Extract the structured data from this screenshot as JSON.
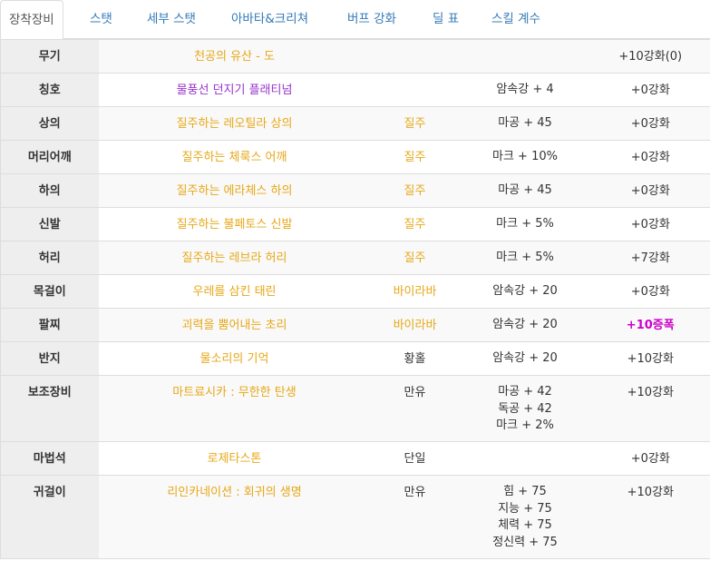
{
  "tabs": [
    {
      "label": "장착장비",
      "active": true
    },
    {
      "label": "스탯"
    },
    {
      "label": "세부 스탯"
    },
    {
      "label": "아바타&크리쳐"
    },
    {
      "label": "버프 강화"
    },
    {
      "label": "딜 표"
    },
    {
      "label": "스킬 계수"
    }
  ],
  "colors": {
    "item_gold": "#e6a817",
    "item_purple": "#9932cc",
    "enhance_magenta": "#cc00cc",
    "tab_link": "#337ab7"
  },
  "rows": [
    {
      "slot": "무기",
      "name": "천공의 유산 - 도",
      "set": "",
      "options": [],
      "enhance": "+10강화(0)"
    },
    {
      "slot": "칭호",
      "name": "물풍선 던지기 플래티넘",
      "name_color": "purple",
      "set": "",
      "options": [
        "암속강 + 4"
      ],
      "enhance": "+0강화"
    },
    {
      "slot": "상의",
      "name": "질주하는 레오틸라 상의",
      "set": "질주",
      "options": [
        "마공 + 45"
      ],
      "enhance": "+0강화"
    },
    {
      "slot": "머리어깨",
      "name": "질주하는 체룩스 어깨",
      "set": "질주",
      "options": [
        "마크 + 10%"
      ],
      "enhance": "+0강화"
    },
    {
      "slot": "하의",
      "name": "질주하는 에라체스 하의",
      "set": "질주",
      "options": [
        "마공 + 45"
      ],
      "enhance": "+0강화"
    },
    {
      "slot": "신발",
      "name": "질주하는 불페토스 신발",
      "set": "질주",
      "options": [
        "마크 + 5%"
      ],
      "enhance": "+0강화"
    },
    {
      "slot": "허리",
      "name": "질주하는 레브라 허리",
      "set": "질주",
      "options": [
        "마크 + 5%"
      ],
      "enhance": "+7강화"
    },
    {
      "slot": "목걸이",
      "name": "우레를 삼킨 태린",
      "set": "바이라바",
      "options": [
        "암속강 + 20"
      ],
      "enhance": "+0강화"
    },
    {
      "slot": "팔찌",
      "name": "괴력을 뿜어내는 초리",
      "set": "바이라바",
      "options": [
        "암속강 + 20"
      ],
      "enhance": "+10증폭",
      "enhance_color": "magenta"
    },
    {
      "slot": "반지",
      "name": "물소리의 기억",
      "set": "황홀",
      "set_color": "dark",
      "options": [
        "암속강 + 20"
      ],
      "enhance": "+10강화"
    },
    {
      "slot": "보조장비",
      "name": "마트료시카 : 무한한 탄생",
      "set": "만유",
      "set_color": "dark",
      "options": [
        "마공 + 42",
        "독공 + 42",
        "마크 + 2%"
      ],
      "enhance": "+10강화"
    },
    {
      "slot": "마법석",
      "name": "로제타스톤",
      "set": "단일",
      "set_color": "dark",
      "options": [],
      "enhance": "+0강화"
    },
    {
      "slot": "귀걸이",
      "name": "리인카네이션 : 회귀의 생명",
      "set": "만유",
      "set_color": "dark",
      "options": [
        "힘 + 75",
        "지능 + 75",
        "체력 + 75",
        "정신력 + 75"
      ],
      "enhance": "+10강화"
    }
  ]
}
